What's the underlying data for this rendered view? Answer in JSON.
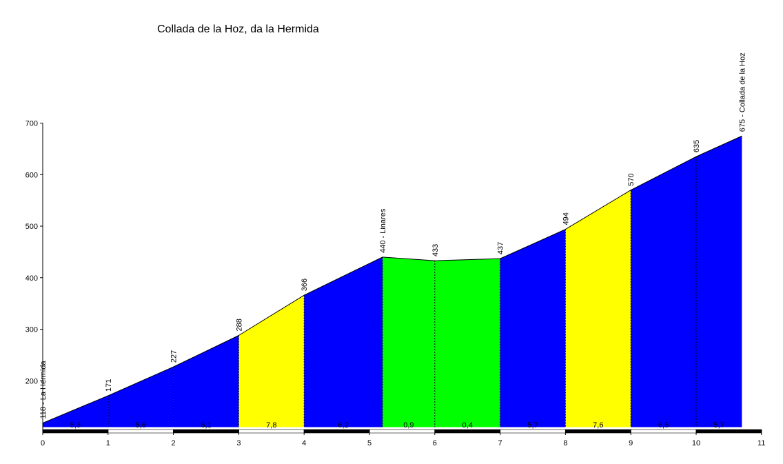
{
  "chart_data": {
    "type": "area",
    "title": "Collada de la Hoz, da la Hermida",
    "xlabel": "",
    "ylabel": "",
    "xlim": [
      0,
      11
    ],
    "ylim": [
      110,
      700
    ],
    "x_ticks": [
      0,
      1,
      2,
      3,
      4,
      5,
      6,
      7,
      8,
      9,
      10,
      11
    ],
    "y_ticks": [
      200,
      300,
      400,
      500,
      600,
      700
    ],
    "points": [
      {
        "x": 0,
        "y": 118,
        "label": "118 - La Hermida"
      },
      {
        "x": 1,
        "y": 171,
        "label": "171"
      },
      {
        "x": 2,
        "y": 227,
        "label": "227"
      },
      {
        "x": 3,
        "y": 288,
        "label": "288"
      },
      {
        "x": 4,
        "y": 366,
        "label": "366"
      },
      {
        "x": 5.2,
        "y": 440,
        "label": "440 - Linares"
      },
      {
        "x": 6,
        "y": 433,
        "label": "433"
      },
      {
        "x": 7,
        "y": 437,
        "label": "437"
      },
      {
        "x": 8,
        "y": 494,
        "label": "494"
      },
      {
        "x": 9,
        "y": 570,
        "label": "570"
      },
      {
        "x": 10,
        "y": 635,
        "label": "635"
      },
      {
        "x": 10.7,
        "y": 675,
        "label": "675 - Collada de la Hoz"
      }
    ],
    "segments": [
      {
        "from": 0,
        "to": 1,
        "gradient": "5,3",
        "color": "#0000ff"
      },
      {
        "from": 1,
        "to": 2,
        "gradient": "5,6",
        "color": "#0000ff"
      },
      {
        "from": 2,
        "to": 3,
        "gradient": "6,1",
        "color": "#0000ff"
      },
      {
        "from": 3,
        "to": 4,
        "gradient": "7,8",
        "color": "#ffff00"
      },
      {
        "from": 4,
        "to": 5.2,
        "gradient": "6,2",
        "color": "#0000ff"
      },
      {
        "from": 5.2,
        "to": 6,
        "gradient": "0,9",
        "color": "#00ff00"
      },
      {
        "from": 6,
        "to": 7,
        "gradient": "0,4",
        "color": "#00ff00"
      },
      {
        "from": 7,
        "to": 8,
        "gradient": "5,7",
        "color": "#0000ff"
      },
      {
        "from": 8,
        "to": 9,
        "gradient": "7,6",
        "color": "#ffff00"
      },
      {
        "from": 9,
        "to": 10,
        "gradient": "6,5",
        "color": "#0000ff"
      },
      {
        "from": 10,
        "to": 10.7,
        "gradient": "5,7",
        "color": "#0000ff"
      }
    ]
  }
}
